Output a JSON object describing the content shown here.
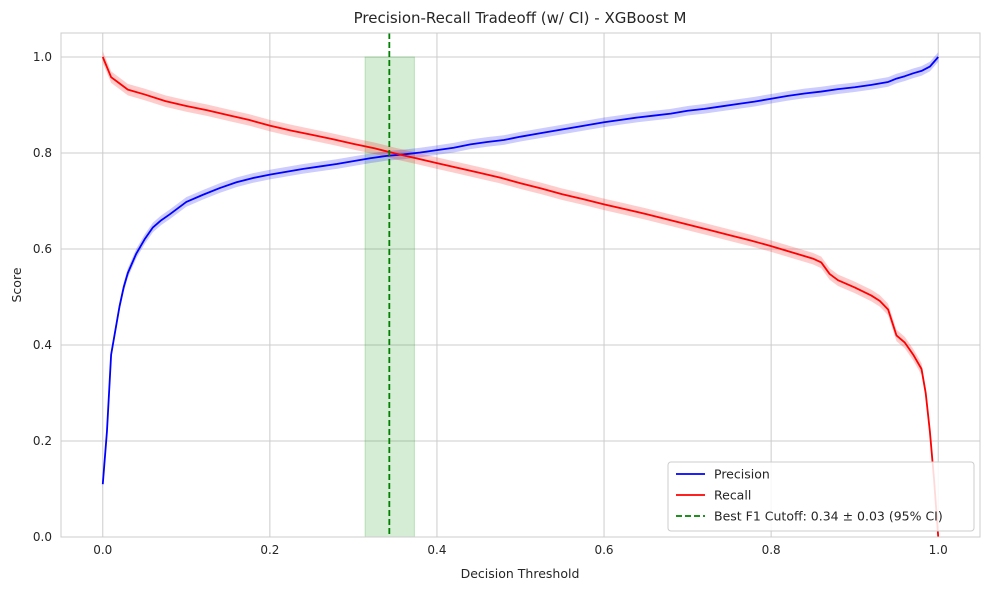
{
  "chart_data": {
    "type": "line",
    "title": "Precision-Recall Tradeoff (w/ CI) - XGBoost M",
    "xlabel": "Decision Threshold",
    "ylabel": "Score",
    "xlim": [
      -0.05,
      1.05
    ],
    "ylim": [
      0,
      1.05
    ],
    "xticks": [
      "0.0",
      "0.2",
      "0.4",
      "0.6",
      "0.8",
      "1.0"
    ],
    "yticks": [
      "0.0",
      "0.2",
      "0.4",
      "0.6",
      "0.8",
      "1.0"
    ],
    "grid": true,
    "legend_position": "lower-right",
    "series": [
      {
        "name": "Precision",
        "color": "#0000ff",
        "ci_color": "#0000ff",
        "x": [
          0.0,
          0.005,
          0.01,
          0.015,
          0.02,
          0.025,
          0.03,
          0.04,
          0.05,
          0.06,
          0.07,
          0.08,
          0.09,
          0.1,
          0.12,
          0.14,
          0.16,
          0.18,
          0.2,
          0.22,
          0.24,
          0.26,
          0.28,
          0.3,
          0.32,
          0.34,
          0.36,
          0.38,
          0.4,
          0.42,
          0.44,
          0.46,
          0.48,
          0.5,
          0.52,
          0.54,
          0.56,
          0.58,
          0.6,
          0.62,
          0.64,
          0.66,
          0.68,
          0.7,
          0.72,
          0.74,
          0.76,
          0.78,
          0.8,
          0.82,
          0.84,
          0.86,
          0.88,
          0.9,
          0.92,
          0.94,
          0.95,
          0.96,
          0.97,
          0.98,
          0.99,
          1.0
        ],
        "y": [
          0.11,
          0.22,
          0.38,
          0.43,
          0.48,
          0.52,
          0.55,
          0.59,
          0.62,
          0.645,
          0.66,
          0.672,
          0.685,
          0.698,
          0.713,
          0.727,
          0.739,
          0.748,
          0.755,
          0.761,
          0.767,
          0.772,
          0.777,
          0.783,
          0.789,
          0.794,
          0.797,
          0.801,
          0.806,
          0.811,
          0.818,
          0.823,
          0.827,
          0.834,
          0.84,
          0.846,
          0.852,
          0.858,
          0.864,
          0.869,
          0.874,
          0.878,
          0.882,
          0.888,
          0.892,
          0.897,
          0.902,
          0.907,
          0.913,
          0.919,
          0.924,
          0.928,
          0.933,
          0.937,
          0.942,
          0.948,
          0.955,
          0.96,
          0.966,
          0.971,
          0.98,
          1.0
        ],
        "ci_halfwidth": 0.01
      },
      {
        "name": "Recall",
        "color": "#ff0000",
        "ci_color": "#ff0000",
        "x": [
          0.0,
          0.01,
          0.02,
          0.03,
          0.05,
          0.075,
          0.1,
          0.125,
          0.15,
          0.175,
          0.2,
          0.225,
          0.25,
          0.275,
          0.3,
          0.325,
          0.35,
          0.375,
          0.4,
          0.425,
          0.45,
          0.475,
          0.5,
          0.525,
          0.55,
          0.575,
          0.6,
          0.625,
          0.65,
          0.675,
          0.7,
          0.725,
          0.75,
          0.775,
          0.8,
          0.825,
          0.85,
          0.86,
          0.87,
          0.88,
          0.9,
          0.92,
          0.93,
          0.94,
          0.95,
          0.96,
          0.97,
          0.98,
          0.985,
          0.99,
          0.995,
          1.0
        ],
        "y": [
          1.0,
          0.958,
          0.945,
          0.932,
          0.922,
          0.908,
          0.898,
          0.889,
          0.879,
          0.869,
          0.857,
          0.847,
          0.838,
          0.829,
          0.819,
          0.81,
          0.799,
          0.789,
          0.779,
          0.769,
          0.759,
          0.749,
          0.737,
          0.726,
          0.714,
          0.704,
          0.693,
          0.683,
          0.673,
          0.662,
          0.651,
          0.64,
          0.629,
          0.618,
          0.606,
          0.593,
          0.58,
          0.572,
          0.548,
          0.535,
          0.52,
          0.503,
          0.492,
          0.474,
          0.42,
          0.405,
          0.38,
          0.35,
          0.3,
          0.22,
          0.12,
          0.0
        ],
        "ci_halfwidth": 0.012
      }
    ],
    "cutoff": {
      "name": "Best F1 Cutoff: 0.34 ± 0.03 (95% CI)",
      "value": 0.343,
      "ci_low": 0.314,
      "ci_high": 0.373,
      "color": "#008000",
      "band_color": "#2ca02c"
    }
  }
}
